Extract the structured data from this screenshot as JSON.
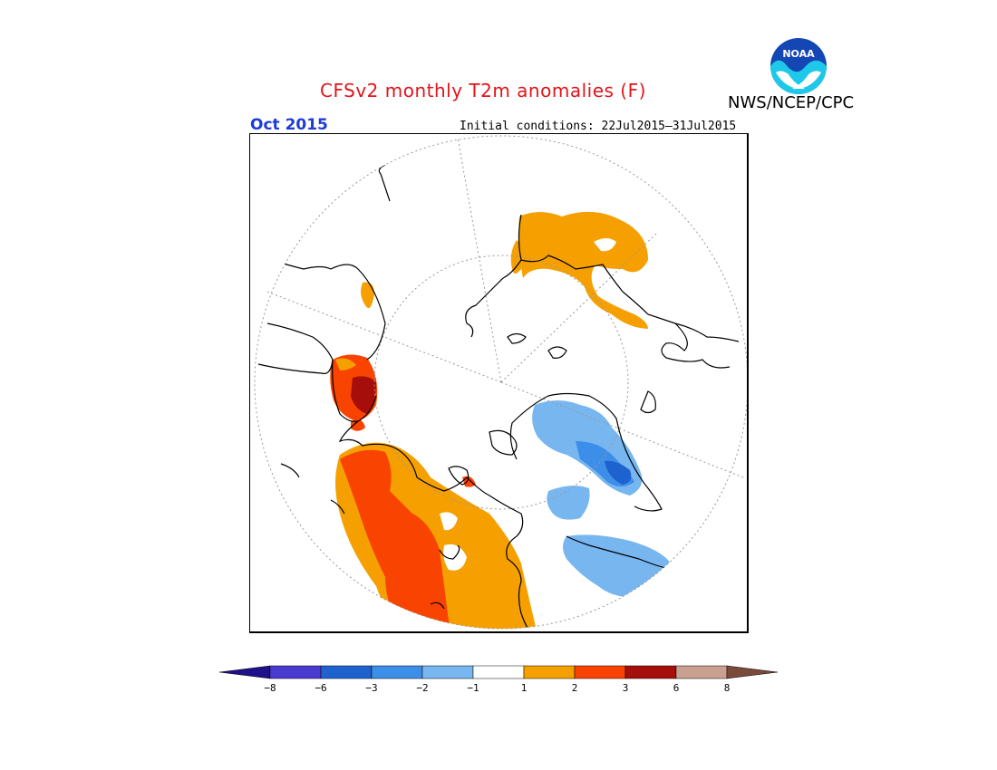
{
  "title": "CFSv2 monthly T2m anomalies (F)",
  "agency": "NWS/NCEP/CPC",
  "logo_text": "NOAA",
  "period": "Oct 2015",
  "initial_conditions": "Initial conditions: 22Jul2015–31Jul2015",
  "legend": {
    "levels": [
      -8,
      -6,
      -3,
      -2,
      -1,
      1,
      2,
      3,
      6,
      8
    ],
    "tick_labels": [
      "−8",
      "−6",
      "−3",
      "−2",
      "−1",
      "1",
      "2",
      "3",
      "6",
      "8"
    ],
    "colors": [
      "#20108a",
      "#4a3bd0",
      "#1e62d0",
      "#3c8ee8",
      "#78b6f0",
      "#ffffff",
      "#f5a000",
      "#f94300",
      "#a50e0a",
      "#c9a090",
      "#7a4a3a"
    ]
  },
  "anomaly_colors": {
    "cold_1": "#78b6f0",
    "cold_2": "#3c8ee8",
    "cold_3": "#1e62d0",
    "warm_1": "#f5a000",
    "warm_2": "#f94300",
    "warm_3": "#a50e0a"
  }
}
